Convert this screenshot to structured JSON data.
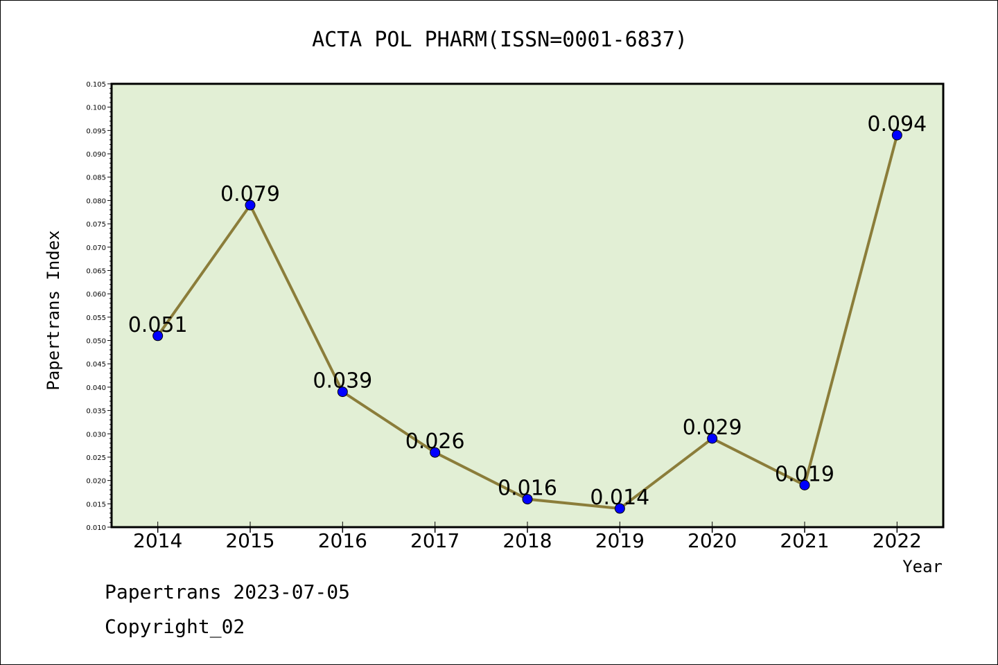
{
  "chart_data": {
    "type": "line",
    "title": "ACTA POL PHARM(ISSN=0001-6837)",
    "xlabel": "Year",
    "ylabel": "Papertrans Index",
    "x": [
      "2014",
      "2015",
      "2016",
      "2017",
      "2018",
      "2019",
      "2020",
      "2021",
      "2022"
    ],
    "values": [
      0.051,
      0.079,
      0.039,
      0.026,
      0.016,
      0.014,
      0.029,
      0.019,
      0.094
    ],
    "data_labels": [
      "0.051",
      "0.079",
      "0.039",
      "0.026",
      "0.016",
      "0.014",
      "0.029",
      "0.019",
      "0.094"
    ],
    "ylim": [
      0.01,
      0.105
    ],
    "yticks": [
      "0.010",
      "0.015",
      "0.020",
      "0.025",
      "0.030",
      "0.035",
      "0.040",
      "0.045",
      "0.050",
      "0.055",
      "0.060",
      "0.065",
      "0.070",
      "0.075",
      "0.080",
      "0.085",
      "0.090",
      "0.095",
      "0.100",
      "0.105"
    ],
    "grid": false,
    "colors": {
      "plot_background": "#e2efd5",
      "line": "#8b7d3a",
      "marker": "#0000ff"
    }
  },
  "footer": {
    "line1": "Papertrans 2023-07-05",
    "line2": "Copyright_02"
  }
}
